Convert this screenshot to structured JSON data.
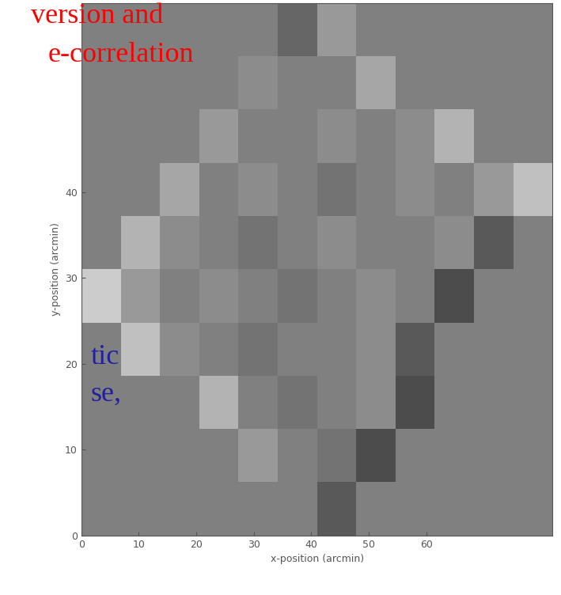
{
  "chart_data": {
    "type": "heatmap",
    "x_label": "x-position (arcmin)",
    "y_label": "y-position (arcmin)",
    "xlim": [
      0,
      82
    ],
    "ylim": [
      0,
      62
    ],
    "xticks": [
      0,
      10,
      20,
      30,
      40,
      50,
      60
    ],
    "yticks": [
      0,
      10,
      20,
      30,
      40
    ],
    "x": [
      3.4,
      10.3,
      17.1,
      23.9,
      30.8,
      37.6,
      44.4,
      51.3,
      58.1,
      64.9,
      71.8,
      78.6
    ],
    "y": [
      3.1,
      9.3,
      15.5,
      21.7,
      27.9,
      34.1,
      40.3,
      46.5,
      52.7,
      58.9
    ],
    "cells": [
      [
        null,
        null,
        null,
        null,
        null,
        null,
        0.35,
        null,
        null,
        null,
        null,
        null
      ],
      [
        null,
        null,
        null,
        null,
        0.6,
        0.5,
        0.45,
        0.3,
        null,
        null,
        null,
        null
      ],
      [
        null,
        null,
        null,
        0.7,
        0.5,
        0.45,
        0.5,
        0.55,
        0.3,
        null,
        null,
        null
      ],
      [
        null,
        0.75,
        0.55,
        0.5,
        0.45,
        0.5,
        0.5,
        0.55,
        0.35,
        null,
        null,
        null
      ],
      [
        0.8,
        0.6,
        0.5,
        0.55,
        0.5,
        0.45,
        0.5,
        0.55,
        0.5,
        0.3,
        null,
        null
      ],
      [
        null,
        0.7,
        0.55,
        0.5,
        0.45,
        0.5,
        0.55,
        0.5,
        0.5,
        0.55,
        0.35,
        null
      ],
      [
        null,
        null,
        0.65,
        0.5,
        0.55,
        0.5,
        0.45,
        0.5,
        0.55,
        0.5,
        0.6,
        0.75
      ],
      [
        null,
        null,
        null,
        0.6,
        0.5,
        0.5,
        0.55,
        0.5,
        0.55,
        0.7,
        null,
        null
      ],
      [
        null,
        null,
        null,
        null,
        0.55,
        0.5,
        0.5,
        0.65,
        null,
        null,
        null,
        null
      ],
      [
        null,
        null,
        null,
        null,
        null,
        0.4,
        0.6,
        null,
        null,
        null,
        null,
        null
      ]
    ],
    "zlim": [
      0,
      1
    ],
    "color": "gray",
    "annotations": [
      {
        "text": "version and",
        "color": "#ff0000"
      },
      {
        "text": "e-correlation",
        "color": "#ff0000"
      },
      {
        "text": "tic",
        "color": "#2020a0"
      },
      {
        "text": "se,",
        "color": "#2020a0"
      }
    ]
  }
}
